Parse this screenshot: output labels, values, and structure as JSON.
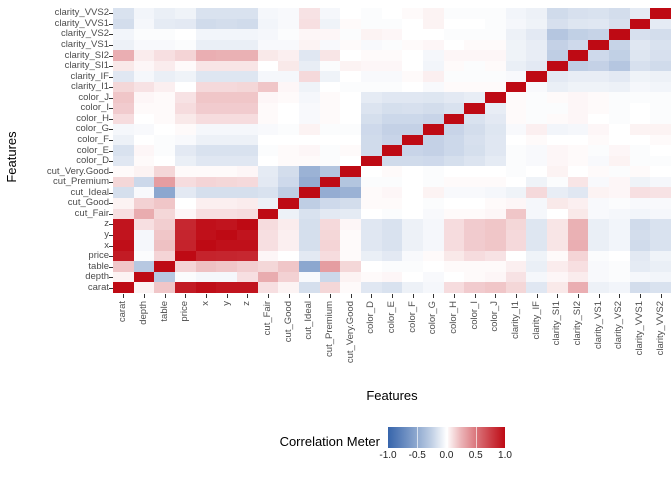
{
  "figure": {
    "x_axis_title": "Features",
    "y_axis_title": "Features",
    "legend": {
      "title": "Correlation Meter",
      "tick_labels": [
        "-1.0",
        "-0.5",
        "0.0",
        "0.5",
        "1.0"
      ],
      "tick_values": [
        -1.0,
        -0.5,
        0.0,
        0.5,
        1.0
      ],
      "low_color": "#3765AB",
      "mid_color": "#FFFFFF",
      "high_color": "#BE0A14"
    }
  },
  "chart_data": {
    "type": "heatmap",
    "title": "",
    "xlabel": "Features",
    "ylabel": "Features",
    "legend_title": "Correlation Meter",
    "colorscale": {
      "domain": [
        -1,
        0,
        1
      ],
      "colors": [
        "#3765AB",
        "#FFFFFF",
        "#BE0A14"
      ]
    },
    "axis_note": "x axis left-to-right and y axis bottom-to-top both use the features order below; matrix[i][j] = correlation(features[i], features[j])",
    "features": [
      "carat",
      "depth",
      "table",
      "price",
      "x",
      "y",
      "z",
      "cut_Fair",
      "cut_Good",
      "cut_Ideal",
      "cut_Premium",
      "cut_Very.Good",
      "color_D",
      "color_E",
      "color_F",
      "color_G",
      "color_H",
      "color_I",
      "color_J",
      "clarity_I1",
      "clarity_IF",
      "clarity_SI1",
      "clarity_SI2",
      "clarity_VS1",
      "clarity_VS2",
      "clarity_VVS1",
      "clarity_VVS2"
    ],
    "matrix": [
      [
        1.0,
        0.03,
        0.18,
        0.92,
        0.98,
        0.95,
        0.95,
        0.09,
        0.03,
        -0.16,
        0.12,
        0.01,
        -0.11,
        -0.14,
        -0.06,
        -0.03,
        0.1,
        0.16,
        0.18,
        0.12,
        -0.11,
        0.06,
        0.27,
        -0.06,
        -0.04,
        -0.17,
        -0.14
      ],
      [
        0.03,
        1.0,
        -0.3,
        -0.01,
        -0.03,
        -0.03,
        0.09,
        0.28,
        0.14,
        -0.02,
        -0.2,
        0.03,
        0.01,
        0.02,
        0.0,
        -0.02,
        0.0,
        0.01,
        0.02,
        0.08,
        -0.03,
        0.02,
        0.05,
        -0.02,
        -0.01,
        -0.03,
        -0.04
      ],
      [
        0.18,
        -0.3,
        1.0,
        0.13,
        0.2,
        0.18,
        0.15,
        0.12,
        0.18,
        -0.52,
        0.34,
        0.12,
        0.0,
        -0.01,
        -0.01,
        0.0,
        0.01,
        0.01,
        0.01,
        0.04,
        -0.07,
        0.05,
        0.09,
        -0.02,
        -0.01,
        -0.09,
        -0.07
      ],
      [
        0.92,
        -0.01,
        0.13,
        1.0,
        0.88,
        0.87,
        0.86,
        0.02,
        0.0,
        -0.1,
        0.1,
        0.01,
        -0.07,
        -0.1,
        -0.02,
        0.01,
        0.06,
        0.1,
        0.08,
        0.0,
        -0.05,
        0.01,
        0.13,
        -0.01,
        0.0,
        -0.1,
        -0.05
      ],
      [
        0.98,
        -0.03,
        0.2,
        0.88,
        1.0,
        0.97,
        0.97,
        0.09,
        0.04,
        -0.16,
        0.13,
        0.01,
        -0.11,
        -0.14,
        -0.06,
        -0.03,
        0.1,
        0.16,
        0.18,
        0.11,
        -0.12,
        0.07,
        0.27,
        -0.07,
        -0.04,
        -0.18,
        -0.14
      ],
      [
        0.95,
        -0.03,
        0.18,
        0.87,
        0.97,
        1.0,
        0.95,
        0.09,
        0.04,
        -0.16,
        0.12,
        0.01,
        -0.11,
        -0.14,
        -0.06,
        -0.03,
        0.1,
        0.16,
        0.18,
        0.11,
        -0.12,
        0.07,
        0.26,
        -0.07,
        -0.04,
        -0.17,
        -0.14
      ],
      [
        0.95,
        0.09,
        0.15,
        0.86,
        0.97,
        0.95,
        1.0,
        0.1,
        0.05,
        -0.16,
        0.11,
        0.02,
        -0.11,
        -0.14,
        -0.06,
        -0.03,
        0.1,
        0.16,
        0.18,
        0.12,
        -0.12,
        0.07,
        0.26,
        -0.07,
        -0.04,
        -0.18,
        -0.14
      ],
      [
        0.09,
        0.28,
        0.12,
        0.02,
        0.09,
        0.09,
        0.1,
        1.0,
        -0.06,
        -0.14,
        -0.1,
        -0.09,
        0.0,
        -0.01,
        0.0,
        -0.02,
        0.01,
        0.01,
        0.02,
        0.18,
        -0.03,
        0.0,
        0.06,
        -0.02,
        -0.03,
        -0.04,
        -0.03
      ],
      [
        0.03,
        0.14,
        0.18,
        0.0,
        0.04,
        0.04,
        0.05,
        -0.06,
        1.0,
        -0.26,
        -0.19,
        -0.17,
        0.01,
        0.01,
        0.0,
        -0.01,
        0.0,
        0.0,
        0.01,
        0.02,
        -0.03,
        0.06,
        0.04,
        -0.02,
        -0.01,
        -0.02,
        -0.02
      ],
      [
        -0.16,
        -0.02,
        -0.52,
        -0.1,
        -0.16,
        -0.16,
        -0.16,
        -0.14,
        -0.26,
        1.0,
        -0.48,
        -0.44,
        0.01,
        0.02,
        0.0,
        0.03,
        -0.02,
        -0.02,
        -0.03,
        -0.05,
        0.11,
        -0.08,
        -0.11,
        0.03,
        0.02,
        0.09,
        0.08
      ],
      [
        0.12,
        -0.2,
        0.34,
        0.1,
        0.13,
        0.12,
        0.11,
        -0.1,
        -0.19,
        -0.48,
        1.0,
        -0.32,
        -0.01,
        -0.01,
        0.0,
        -0.01,
        0.01,
        0.01,
        0.01,
        0.0,
        -0.05,
        -0.01,
        0.07,
        -0.02,
        0.02,
        -0.05,
        -0.03
      ],
      [
        0.01,
        0.03,
        0.12,
        0.01,
        0.01,
        0.01,
        0.02,
        -0.09,
        -0.17,
        -0.44,
        -0.32,
        1.0,
        0.0,
        0.01,
        0.0,
        -0.01,
        0.0,
        0.0,
        0.0,
        -0.01,
        0.0,
        0.03,
        0.0,
        0.01,
        -0.01,
        0.01,
        0.0
      ],
      [
        -0.11,
        0.01,
        0.0,
        -0.07,
        -0.11,
        -0.11,
        -0.11,
        0.0,
        0.01,
        0.01,
        -0.01,
        0.0,
        1.0,
        -0.18,
        -0.18,
        -0.19,
        -0.16,
        -0.13,
        -0.09,
        -0.01,
        -0.02,
        0.02,
        0.01,
        -0.02,
        0.03,
        -0.01,
        -0.01
      ],
      [
        -0.14,
        0.02,
        -0.01,
        -0.1,
        -0.14,
        -0.14,
        -0.14,
        -0.01,
        0.01,
        0.02,
        -0.01,
        0.01,
        -0.18,
        1.0,
        -0.22,
        -0.24,
        -0.2,
        -0.16,
        -0.11,
        -0.01,
        -0.02,
        0.02,
        0.01,
        -0.01,
        0.02,
        -0.01,
        0.0
      ],
      [
        -0.06,
        0.0,
        -0.01,
        -0.02,
        -0.06,
        -0.06,
        -0.06,
        0.0,
        0.0,
        0.0,
        0.0,
        0.0,
        -0.18,
        -0.22,
        1.0,
        -0.24,
        -0.2,
        -0.15,
        -0.11,
        0.0,
        0.01,
        0.0,
        0.0,
        0.01,
        0.0,
        0.0,
        0.01
      ],
      [
        -0.03,
        -0.02,
        0.0,
        0.01,
        -0.03,
        -0.03,
        -0.03,
        -0.02,
        -0.01,
        0.03,
        -0.01,
        -0.01,
        -0.19,
        -0.24,
        -0.24,
        1.0,
        -0.22,
        -0.17,
        -0.12,
        -0.02,
        0.04,
        -0.04,
        -0.03,
        0.02,
        0.0,
        0.03,
        0.03
      ],
      [
        0.1,
        0.0,
        0.01,
        0.06,
        0.1,
        0.1,
        0.1,
        0.01,
        0.0,
        -0.02,
        0.01,
        0.0,
        -0.16,
        -0.2,
        -0.2,
        -0.22,
        1.0,
        -0.14,
        -0.1,
        0.01,
        -0.01,
        0.01,
        0.02,
        0.0,
        -0.01,
        0.0,
        -0.01
      ],
      [
        0.16,
        0.01,
        0.01,
        0.1,
        0.16,
        0.16,
        0.16,
        0.01,
        0.0,
        -0.02,
        0.01,
        0.0,
        -0.13,
        -0.16,
        -0.15,
        -0.17,
        -0.14,
        1.0,
        -0.08,
        0.01,
        -0.01,
        -0.01,
        0.02,
        0.01,
        -0.01,
        0.0,
        -0.01
      ],
      [
        0.18,
        0.02,
        0.01,
        0.08,
        0.18,
        0.18,
        0.18,
        0.02,
        0.01,
        -0.03,
        0.01,
        0.0,
        -0.09,
        -0.11,
        -0.11,
        -0.12,
        -0.1,
        -0.08,
        1.0,
        0.01,
        -0.01,
        0.01,
        0.02,
        0.01,
        -0.01,
        -0.01,
        -0.01
      ],
      [
        0.12,
        0.08,
        0.04,
        0.0,
        0.11,
        0.11,
        0.12,
        0.18,
        0.02,
        -0.05,
        0.0,
        -0.01,
        -0.01,
        -0.01,
        0.0,
        -0.02,
        0.01,
        0.01,
        0.01,
        1.0,
        -0.02,
        -0.07,
        -0.05,
        -0.05,
        -0.06,
        -0.03,
        -0.04
      ],
      [
        -0.11,
        -0.03,
        -0.07,
        -0.05,
        -0.12,
        -0.12,
        -0.12,
        -0.03,
        -0.03,
        0.11,
        -0.05,
        0.0,
        -0.02,
        -0.02,
        0.01,
        0.04,
        -0.01,
        -0.01,
        -0.01,
        -0.02,
        1.0,
        -0.1,
        -0.08,
        -0.08,
        -0.1,
        -0.05,
        -0.06
      ],
      [
        0.06,
        0.02,
        0.05,
        0.01,
        0.07,
        0.07,
        0.07,
        0.0,
        0.06,
        -0.08,
        -0.01,
        0.03,
        0.02,
        0.02,
        0.0,
        -0.04,
        0.01,
        -0.01,
        0.01,
        -0.07,
        -0.1,
        1.0,
        -0.26,
        -0.24,
        -0.31,
        -0.15,
        -0.18
      ],
      [
        0.27,
        0.05,
        0.09,
        0.13,
        0.27,
        0.26,
        0.26,
        0.06,
        0.04,
        -0.11,
        0.07,
        0.0,
        0.01,
        0.01,
        0.0,
        -0.03,
        0.02,
        0.02,
        0.02,
        -0.05,
        -0.08,
        -0.26,
        1.0,
        -0.19,
        -0.25,
        -0.12,
        -0.15
      ],
      [
        -0.06,
        -0.02,
        -0.02,
        -0.01,
        -0.07,
        -0.07,
        -0.07,
        -0.02,
        -0.02,
        0.03,
        -0.02,
        0.01,
        -0.02,
        -0.01,
        0.01,
        0.02,
        0.0,
        0.01,
        0.01,
        -0.05,
        -0.08,
        -0.24,
        -0.19,
        1.0,
        -0.23,
        -0.11,
        -0.14
      ],
      [
        -0.04,
        -0.01,
        -0.01,
        0.0,
        -0.04,
        -0.04,
        -0.04,
        -0.03,
        -0.01,
        0.02,
        0.02,
        -0.01,
        0.03,
        0.02,
        0.0,
        0.0,
        -0.01,
        -0.01,
        -0.01,
        -0.06,
        -0.1,
        -0.31,
        -0.25,
        -0.23,
        1.0,
        -0.15,
        -0.17
      ],
      [
        -0.17,
        -0.03,
        -0.09,
        -0.1,
        -0.18,
        -0.17,
        -0.18,
        -0.04,
        -0.02,
        0.09,
        -0.05,
        0.01,
        -0.01,
        -0.01,
        0.0,
        0.03,
        0.0,
        0.0,
        -0.01,
        -0.03,
        -0.05,
        -0.15,
        -0.12,
        -0.11,
        -0.15,
        1.0,
        -0.09
      ],
      [
        -0.14,
        -0.04,
        -0.07,
        -0.05,
        -0.14,
        -0.14,
        -0.14,
        -0.03,
        -0.02,
        0.08,
        -0.03,
        0.0,
        -0.01,
        0.0,
        0.01,
        0.03,
        -0.01,
        -0.01,
        -0.01,
        -0.04,
        -0.06,
        -0.18,
        -0.15,
        -0.14,
        -0.17,
        -0.09,
        1.0
      ]
    ],
    "value_range": [
      -1,
      1
    ],
    "grid": false,
    "legend_position": "bottom"
  }
}
